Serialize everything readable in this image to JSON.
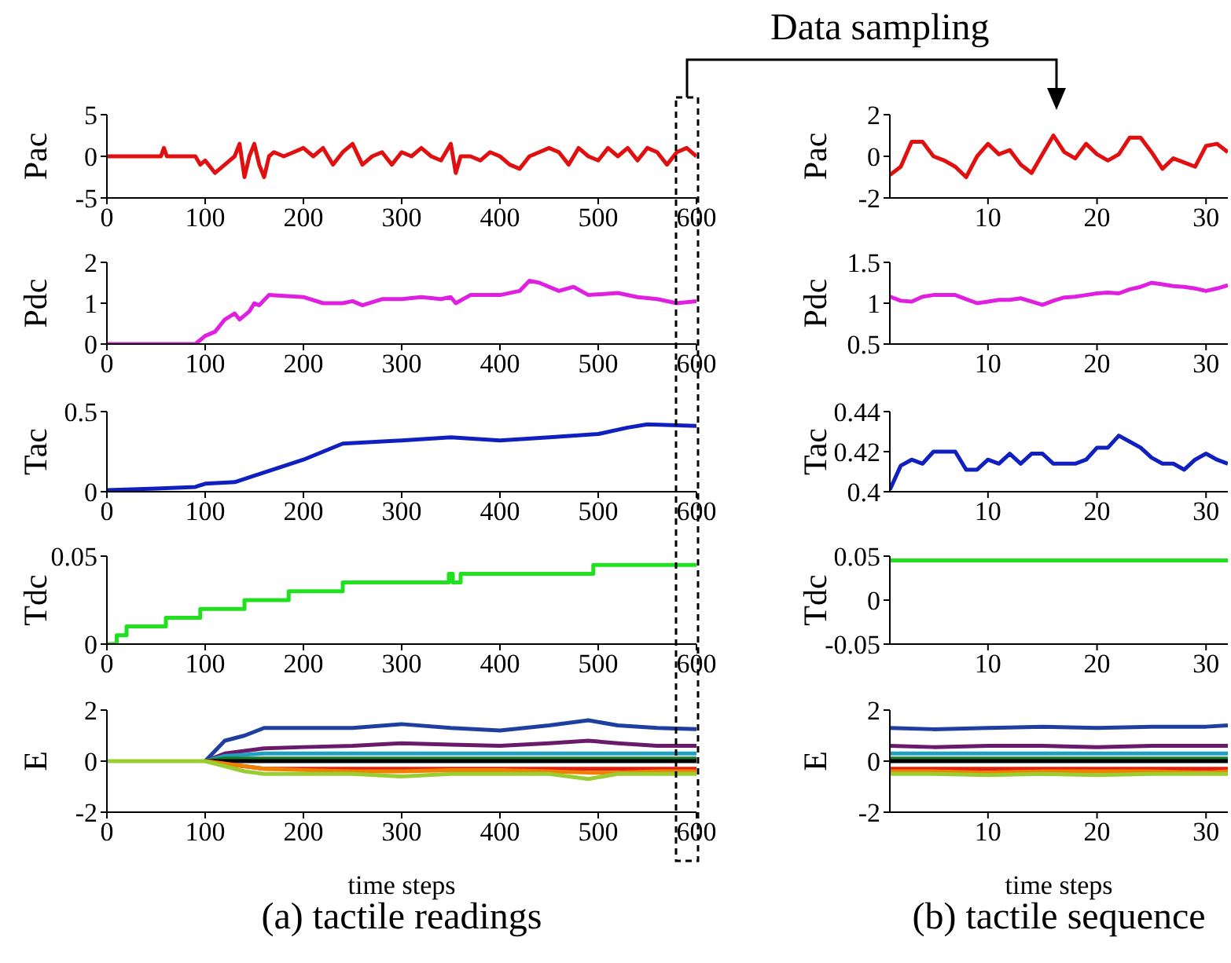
{
  "chart_data": [
    {
      "type": "line",
      "ylabel": "Pac",
      "xlim": [
        0,
        600
      ],
      "xticks": [
        0,
        100,
        200,
        300,
        400,
        500,
        600
      ],
      "ylim": [
        -5,
        5
      ],
      "yticks": [
        -5,
        0,
        5
      ],
      "x": [
        0,
        55,
        58,
        61,
        90,
        95,
        100,
        110,
        120,
        130,
        135,
        140,
        145,
        150,
        155,
        160,
        165,
        170,
        180,
        190,
        200,
        210,
        220,
        230,
        240,
        250,
        260,
        270,
        280,
        290,
        300,
        310,
        320,
        330,
        340,
        350,
        355,
        360,
        370,
        380,
        390,
        400,
        410,
        420,
        430,
        440,
        450,
        460,
        470,
        480,
        490,
        500,
        510,
        520,
        530,
        540,
        550,
        560,
        570,
        580,
        590,
        600
      ],
      "series": [
        {
          "color": "#e01010",
          "values": [
            0,
            0,
            1,
            0,
            0,
            -1,
            -0.5,
            -2,
            -1,
            0,
            1.5,
            -2.5,
            0,
            1.5,
            -1,
            -2.5,
            0,
            0.5,
            0,
            0.5,
            1,
            0,
            1,
            -1,
            0.5,
            1.5,
            -1,
            0,
            0.5,
            -1,
            0.5,
            0,
            1,
            0,
            -0.5,
            1.5,
            -2,
            0,
            0,
            -0.5,
            0.5,
            0,
            -1,
            -1.5,
            0,
            0.5,
            1,
            0.5,
            -1,
            1,
            0,
            -0.5,
            1,
            0,
            1,
            -0.5,
            1,
            0.5,
            -1,
            0.5,
            1,
            0
          ]
        }
      ]
    },
    {
      "type": "line",
      "ylabel": "Pdc",
      "xlim": [
        0,
        600
      ],
      "xticks": [
        0,
        100,
        200,
        300,
        400,
        500,
        600
      ],
      "ylim": [
        0,
        2
      ],
      "yticks": [
        0,
        1,
        2
      ],
      "x": [
        0,
        90,
        100,
        110,
        120,
        130,
        135,
        145,
        150,
        155,
        165,
        200,
        220,
        240,
        250,
        260,
        280,
        300,
        320,
        340,
        350,
        355,
        370,
        400,
        420,
        430,
        440,
        460,
        475,
        490,
        520,
        540,
        560,
        580,
        600
      ],
      "series": [
        {
          "color": "#e020e0",
          "values": [
            0,
            0,
            0.2,
            0.3,
            0.6,
            0.75,
            0.6,
            0.8,
            1,
            0.95,
            1.2,
            1.15,
            1,
            1,
            1.05,
            0.95,
            1.1,
            1.1,
            1.15,
            1.1,
            1.15,
            1,
            1.2,
            1.2,
            1.3,
            1.55,
            1.5,
            1.3,
            1.4,
            1.2,
            1.25,
            1.15,
            1.1,
            1,
            1.05
          ]
        }
      ]
    },
    {
      "type": "line",
      "ylabel": "Tac",
      "xlim": [
        0,
        600
      ],
      "xticks": [
        0,
        100,
        200,
        300,
        400,
        500,
        600
      ],
      "ylim": [
        0,
        0.5
      ],
      "yticks": [
        0,
        0.5
      ],
      "x": [
        0,
        50,
        90,
        100,
        130,
        150,
        200,
        240,
        300,
        350,
        400,
        450,
        500,
        530,
        550,
        600
      ],
      "series": [
        {
          "color": "#1020c0",
          "values": [
            0.01,
            0.02,
            0.03,
            0.05,
            0.06,
            0.1,
            0.2,
            0.3,
            0.32,
            0.34,
            0.32,
            0.34,
            0.36,
            0.4,
            0.42,
            0.41
          ]
        }
      ]
    },
    {
      "type": "step",
      "ylabel": "Tdc",
      "xlim": [
        0,
        600
      ],
      "xticks": [
        0,
        100,
        200,
        300,
        400,
        500,
        600
      ],
      "ylim": [
        0,
        0.05
      ],
      "yticks": [
        0,
        0.05
      ],
      "x": [
        0,
        10,
        20,
        60,
        95,
        140,
        185,
        240,
        348,
        352,
        360,
        495,
        600
      ],
      "series": [
        {
          "color": "#20e020",
          "values": [
            0,
            0.005,
            0.01,
            0.015,
            0.02,
            0.025,
            0.03,
            0.035,
            0.04,
            0.035,
            0.04,
            0.045,
            0.045
          ]
        }
      ]
    },
    {
      "type": "line",
      "ylabel": "E",
      "xlabel": "time steps",
      "xlim": [
        0,
        600
      ],
      "xticks": [
        0,
        100,
        200,
        300,
        400,
        500,
        600
      ],
      "ylim": [
        -2,
        2
      ],
      "yticks": [
        -2,
        0,
        2
      ],
      "annotations": [
        "(a) tactile readings"
      ],
      "x": [
        0,
        100,
        120,
        140,
        160,
        200,
        250,
        300,
        350,
        400,
        450,
        490,
        520,
        560,
        600
      ],
      "series": [
        {
          "color": "#1f3fa0",
          "values": [
            null,
            0,
            0.8,
            1,
            1.3,
            1.3,
            1.3,
            1.45,
            1.3,
            1.2,
            1.4,
            1.6,
            1.4,
            1.3,
            1.25
          ]
        },
        {
          "color": "#6a1a6a",
          "values": [
            null,
            0,
            0.3,
            0.4,
            0.5,
            0.55,
            0.6,
            0.7,
            0.65,
            0.6,
            0.7,
            0.8,
            0.7,
            0.6,
            0.6
          ]
        },
        {
          "color": "#20a0c0",
          "values": [
            null,
            0,
            0.2,
            0.25,
            0.3,
            0.3,
            0.3,
            0.3,
            0.3,
            0.3,
            0.3,
            0.3,
            0.3,
            0.3,
            0.3
          ]
        },
        {
          "color": "#1a7a2a",
          "values": [
            null,
            0,
            0.1,
            0.1,
            0.1,
            0.1,
            0.1,
            0.1,
            0.1,
            0.1,
            0.1,
            0.1,
            0.1,
            0.1,
            0.1
          ]
        },
        {
          "color": "#000000",
          "values": [
            null,
            0,
            0,
            0,
            0,
            0,
            0,
            0,
            0,
            0,
            0,
            0,
            0,
            0,
            0
          ]
        },
        {
          "color": "#e02010",
          "values": [
            null,
            0,
            -0.1,
            -0.2,
            -0.3,
            -0.3,
            -0.3,
            -0.3,
            -0.3,
            -0.3,
            -0.3,
            -0.3,
            -0.3,
            -0.3,
            -0.3
          ]
        },
        {
          "color": "#f08000",
          "values": [
            null,
            0,
            -0.1,
            -0.2,
            -0.3,
            -0.35,
            -0.4,
            -0.4,
            -0.35,
            -0.35,
            -0.4,
            -0.45,
            -0.45,
            -0.4,
            -0.4
          ]
        },
        {
          "color": "#9acd32",
          "values": [
            0,
            0,
            -0.2,
            -0.4,
            -0.5,
            -0.5,
            -0.5,
            -0.6,
            -0.5,
            -0.5,
            -0.5,
            -0.7,
            -0.5,
            -0.5,
            -0.5
          ]
        }
      ]
    },
    {
      "type": "line",
      "ylabel": "Pac",
      "xlim": [
        1,
        32
      ],
      "xticks": [
        10,
        20,
        30
      ],
      "ylim": [
        -2,
        2
      ],
      "yticks": [
        -2,
        0,
        2
      ],
      "annotations": [
        "Data sampling"
      ],
      "x": [
        1,
        2,
        3,
        4,
        5,
        6,
        7,
        8,
        9,
        10,
        11,
        12,
        13,
        14,
        15,
        16,
        17,
        18,
        19,
        20,
        21,
        22,
        23,
        24,
        25,
        26,
        27,
        28,
        29,
        30,
        31,
        32
      ],
      "series": [
        {
          "color": "#e01010",
          "values": [
            -0.9,
            -0.5,
            0.7,
            0.7,
            0,
            -0.2,
            -0.5,
            -1,
            0,
            0.6,
            0.1,
            0.3,
            -0.4,
            -0.8,
            0.1,
            1,
            0.2,
            -0.1,
            0.6,
            0.1,
            -0.2,
            0.1,
            0.9,
            0.9,
            0.2,
            -0.6,
            -0.1,
            -0.3,
            -0.5,
            0.5,
            0.6,
            0.2
          ]
        }
      ]
    },
    {
      "type": "line",
      "ylabel": "Pdc",
      "xlim": [
        1,
        32
      ],
      "xticks": [
        10,
        20,
        30
      ],
      "ylim": [
        0.5,
        1.5
      ],
      "yticks": [
        0.5,
        1,
        1.5
      ],
      "x": [
        1,
        2,
        3,
        4,
        5,
        6,
        7,
        8,
        9,
        10,
        11,
        12,
        13,
        14,
        15,
        16,
        17,
        18,
        19,
        20,
        21,
        22,
        23,
        24,
        25,
        26,
        27,
        28,
        29,
        30,
        31,
        32
      ],
      "series": [
        {
          "color": "#e020e0",
          "values": [
            1.08,
            1.03,
            1.02,
            1.08,
            1.1,
            1.1,
            1.1,
            1.05,
            1,
            1.02,
            1.04,
            1.04,
            1.06,
            1.02,
            0.98,
            1.03,
            1.07,
            1.08,
            1.1,
            1.12,
            1.13,
            1.12,
            1.17,
            1.2,
            1.25,
            1.23,
            1.21,
            1.2,
            1.18,
            1.15,
            1.18,
            1.22
          ]
        }
      ]
    },
    {
      "type": "line",
      "ylabel": "Tac",
      "xlim": [
        1,
        32
      ],
      "xticks": [
        10,
        20,
        30
      ],
      "ylim": [
        0.4,
        0.44
      ],
      "yticks": [
        0.4,
        0.42,
        0.44
      ],
      "x": [
        1,
        2,
        3,
        4,
        5,
        6,
        7,
        8,
        9,
        10,
        11,
        12,
        13,
        14,
        15,
        16,
        17,
        18,
        19,
        20,
        21,
        22,
        23,
        24,
        25,
        26,
        27,
        28,
        29,
        30,
        31,
        32
      ],
      "series": [
        {
          "color": "#1020c0",
          "values": [
            0.401,
            0.413,
            0.416,
            0.414,
            0.42,
            0.42,
            0.42,
            0.411,
            0.411,
            0.416,
            0.414,
            0.419,
            0.414,
            0.419,
            0.419,
            0.414,
            0.414,
            0.414,
            0.416,
            0.422,
            0.422,
            0.428,
            0.425,
            0.422,
            0.417,
            0.414,
            0.414,
            0.411,
            0.416,
            0.419,
            0.416,
            0.414
          ]
        }
      ]
    },
    {
      "type": "line",
      "ylabel": "Tdc",
      "xlim": [
        1,
        32
      ],
      "xticks": [
        10,
        20,
        30
      ],
      "ylim": [
        -0.05,
        0.05
      ],
      "yticks": [
        -0.05,
        0,
        0.05
      ],
      "x": [
        1,
        32
      ],
      "series": [
        {
          "color": "#20e020",
          "values": [
            0.045,
            0.045
          ]
        }
      ]
    },
    {
      "type": "line",
      "ylabel": "E",
      "xlabel": "time steps",
      "xlim": [
        1,
        32
      ],
      "xticks": [
        10,
        20,
        30
      ],
      "ylim": [
        -2,
        2
      ],
      "yticks": [
        -2,
        0,
        2
      ],
      "annotations": [
        "(b) tactile sequence"
      ],
      "x": [
        1,
        5,
        10,
        15,
        20,
        25,
        30,
        32
      ],
      "series": [
        {
          "color": "#1f3fa0",
          "values": [
            1.3,
            1.25,
            1.3,
            1.35,
            1.3,
            1.35,
            1.35,
            1.4
          ]
        },
        {
          "color": "#6a1a6a",
          "values": [
            0.6,
            0.55,
            0.6,
            0.6,
            0.55,
            0.6,
            0.6,
            0.6
          ]
        },
        {
          "color": "#20a0c0",
          "values": [
            0.3,
            0.3,
            0.3,
            0.3,
            0.3,
            0.3,
            0.3,
            0.3
          ]
        },
        {
          "color": "#1a7a2a",
          "values": [
            0.1,
            0.1,
            0.1,
            0.1,
            0.1,
            0.1,
            0.1,
            0.1
          ]
        },
        {
          "color": "#000000",
          "values": [
            0,
            0,
            0,
            0,
            0,
            0,
            0,
            0
          ]
        },
        {
          "color": "#e02010",
          "values": [
            -0.3,
            -0.3,
            -0.3,
            -0.3,
            -0.3,
            -0.3,
            -0.3,
            -0.3
          ]
        },
        {
          "color": "#f08000",
          "values": [
            -0.4,
            -0.4,
            -0.45,
            -0.4,
            -0.4,
            -0.4,
            -0.45,
            -0.4
          ]
        },
        {
          "color": "#9acd32",
          "values": [
            -0.5,
            -0.5,
            -0.55,
            -0.5,
            -0.55,
            -0.5,
            -0.5,
            -0.5
          ]
        }
      ]
    }
  ]
}
